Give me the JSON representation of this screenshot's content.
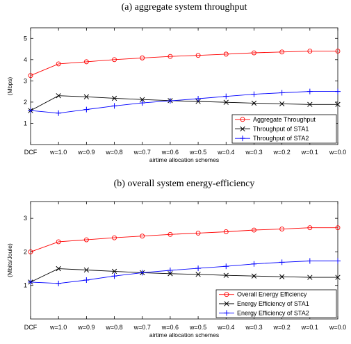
{
  "chart_data": [
    {
      "type": "line",
      "title": "(a) aggregate system throughput",
      "xlabel": "airtime allocation schemes",
      "ylabel": "(Mbps)",
      "categories": [
        "DCF",
        "w=1.0",
        "w=0.9",
        "w=0.8",
        "w=0.7",
        "w=0.6",
        "w=0.5",
        "w=0.4",
        "w=0.3",
        "w=0.2",
        "w=0.1",
        "w=0.0"
      ],
      "ylim": [
        0,
        5.5
      ],
      "yticks": [
        "1",
        "2",
        "3",
        "4",
        "5"
      ],
      "grid": false,
      "legend_position": "bottom-right",
      "series": [
        {
          "name": "Aggregate Throughput",
          "color": "#ff0000",
          "marker": "circle",
          "values": [
            3.25,
            3.8,
            3.9,
            4.0,
            4.08,
            4.15,
            4.2,
            4.26,
            4.32,
            4.36,
            4.4,
            4.4
          ]
        },
        {
          "name": "Throughput of STA1",
          "color": "#000000",
          "marker": "x",
          "values": [
            1.6,
            2.3,
            2.25,
            2.18,
            2.12,
            2.07,
            2.03,
            1.99,
            1.95,
            1.92,
            1.89,
            1.89
          ]
        },
        {
          "name": "Throughput of STA2",
          "color": "#0000ff",
          "marker": "plus",
          "values": [
            1.6,
            1.48,
            1.65,
            1.82,
            1.96,
            2.06,
            2.16,
            2.27,
            2.37,
            2.44,
            2.5,
            2.5
          ]
        }
      ]
    },
    {
      "type": "line",
      "title": "(b) overall system energy-efficiency",
      "xlabel": "airtime allocation schemes",
      "ylabel": "(Mbits/Joule)",
      "categories": [
        "DCF",
        "w=1.0",
        "w=0.9",
        "w=0.8",
        "w=0.7",
        "w=0.6",
        "w=0.5",
        "w=0.4",
        "w=0.3",
        "w=0.2",
        "w=0.1",
        "w=0.0"
      ],
      "ylim": [
        0,
        3.5
      ],
      "yticks": [
        "1",
        "2",
        "3"
      ],
      "grid": false,
      "legend_position": "bottom-right",
      "series": [
        {
          "name": "Overall Energy Efficiency",
          "color": "#ff0000",
          "marker": "circle",
          "values": [
            2.0,
            2.3,
            2.36,
            2.42,
            2.47,
            2.52,
            2.56,
            2.6,
            2.65,
            2.68,
            2.72,
            2.72
          ]
        },
        {
          "name": "Energy Efficiency of STA1",
          "color": "#000000",
          "marker": "x",
          "values": [
            1.1,
            1.5,
            1.46,
            1.42,
            1.38,
            1.35,
            1.33,
            1.3,
            1.28,
            1.26,
            1.24,
            1.24
          ]
        },
        {
          "name": "Energy Efficiency of STA2",
          "color": "#0000ff",
          "marker": "plus",
          "values": [
            1.1,
            1.06,
            1.16,
            1.28,
            1.38,
            1.45,
            1.51,
            1.57,
            1.64,
            1.69,
            1.73,
            1.73
          ]
        }
      ]
    }
  ]
}
